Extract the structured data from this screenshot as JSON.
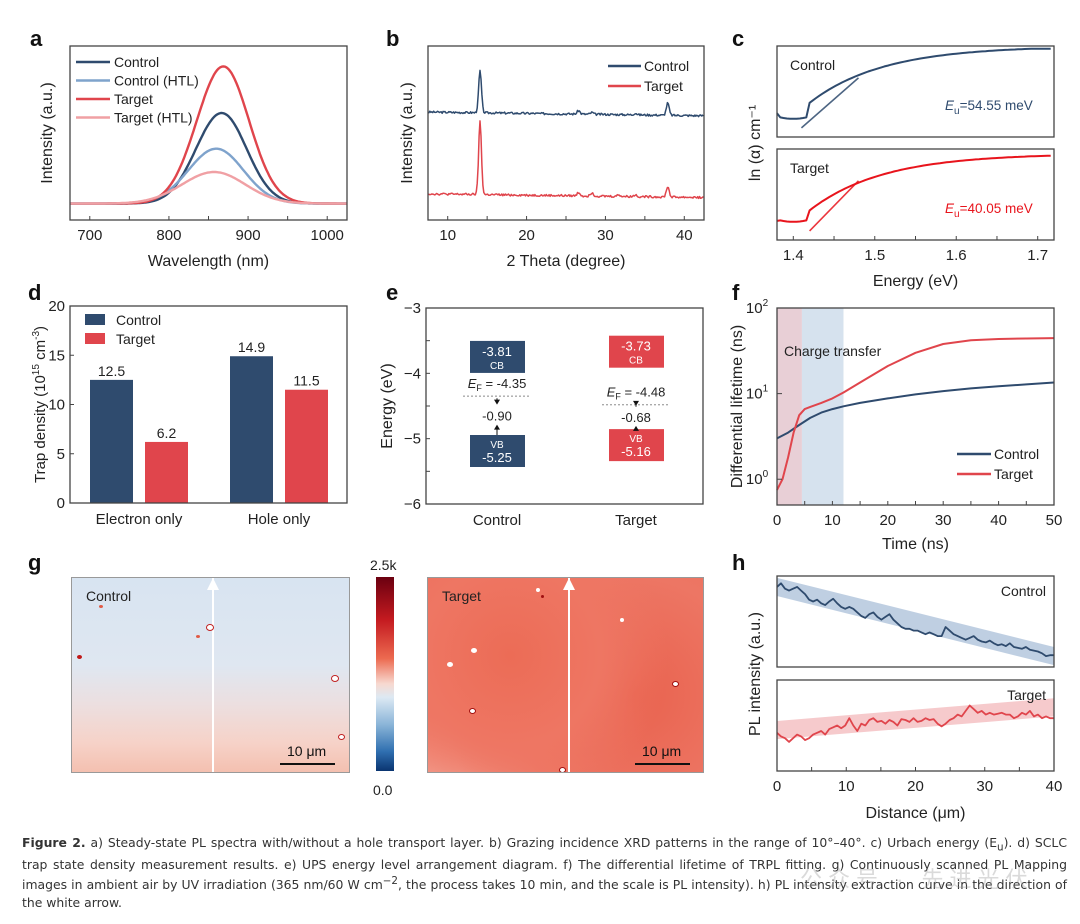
{
  "panels": {
    "a": "a",
    "b": "b",
    "c": "c",
    "d": "d",
    "e": "e",
    "f": "f",
    "g": "g",
    "h": "h"
  },
  "colors": {
    "control": "#2f4b6e",
    "control_htl": "#7fa3cc",
    "target": "#e0454c",
    "target_htl": "#f0a0a4",
    "target_bright": "#e8141c",
    "axis": "#333333"
  },
  "chart_data": [
    {
      "id": "a",
      "type": "line",
      "title": "",
      "xlabel": "Wavelength (nm)",
      "ylabel": "Intensity (a.u.)",
      "xlim": [
        675,
        1025
      ],
      "ylim": [
        -0.12,
        1.15
      ],
      "xticks": [
        700,
        800,
        900,
        1000
      ],
      "legend_position": "top-left",
      "series": [
        {
          "name": "Control",
          "color_key": "control",
          "peak": 865,
          "height": 0.66,
          "width": 32
        },
        {
          "name": "Control (HTL)",
          "color_key": "control_htl",
          "peak": 858,
          "height": 0.4,
          "width": 35
        },
        {
          "name": "Target",
          "color_key": "target",
          "peak": 867,
          "height": 1.0,
          "width": 33
        },
        {
          "name": "Target (HTL)",
          "color_key": "target_htl",
          "peak": 855,
          "height": 0.23,
          "width": 40
        }
      ]
    },
    {
      "id": "b",
      "type": "line",
      "xlabel": "2 Theta (degree)",
      "ylabel": "Intensity (a.u.)",
      "xlim": [
        7.5,
        42.5
      ],
      "xticks": [
        10,
        20,
        30,
        40
      ],
      "legend_position": "top-right",
      "series": [
        {
          "name": "Control",
          "color_key": "control",
          "baseline": 0.62,
          "peaks": [
            [
              14.1,
              0.24
            ],
            [
              26.6,
              0.02
            ],
            [
              28.3,
              0.01
            ],
            [
              33.8,
              0.01
            ],
            [
              37.9,
              0.07
            ]
          ]
        },
        {
          "name": "Target",
          "color_key": "target",
          "baseline": 0.15,
          "peaks": [
            [
              14.1,
              0.42
            ],
            [
              26.6,
              0.02
            ],
            [
              28.3,
              0.02
            ],
            [
              31.7,
              0.01
            ],
            [
              33.8,
              0.01
            ],
            [
              37.9,
              0.06
            ]
          ]
        }
      ]
    },
    {
      "id": "c",
      "type": "line",
      "xlabel": "Energy (eV)",
      "ylabel": "ln (α) cm⁻¹",
      "xlim": [
        1.38,
        1.72
      ],
      "xticks": [
        "1.4",
        "1.5",
        "1.6",
        "1.7"
      ],
      "subplots": [
        {
          "name": "Control",
          "color_key": "control",
          "annotation": "=54.55 meV",
          "Eu": 54.55
        },
        {
          "name": "Target",
          "color_key": "target_bright",
          "annotation": "=40.05 meV",
          "Eu": 40.05
        }
      ],
      "eu_symbol": "E",
      "eu_sub": "u"
    },
    {
      "id": "d",
      "type": "bar",
      "xlabel": "",
      "ylabel": "Trap density (10",
      "ylabel_sup": "15",
      "ylabel_rest": " cm",
      "ylabel_sup2": "-3",
      "ylabel_end": ")",
      "ylim": [
        0,
        20
      ],
      "yticks": [
        0,
        5,
        10,
        15,
        20
      ],
      "categories": [
        "Electron only",
        "Hole only"
      ],
      "legend_position": "top-left",
      "series": [
        {
          "name": "Control",
          "color_key": "control",
          "values": [
            12.5,
            14.9
          ],
          "labels": [
            "12.5",
            "14.9"
          ]
        },
        {
          "name": "Target",
          "color_key": "target",
          "values": [
            6.2,
            11.5
          ],
          "labels": [
            "6.2",
            "11.5"
          ]
        }
      ]
    },
    {
      "id": "e",
      "type": "diagram",
      "ylabel": "Energy (eV)",
      "ylim": [
        -6,
        -3
      ],
      "yticks": [
        "−3",
        "−4",
        "−5",
        "−6"
      ],
      "categories": [
        "Control",
        "Target"
      ],
      "bands": [
        {
          "name": "Control",
          "color_key": "control",
          "CB": -3.81,
          "CB_label": "-3.81",
          "VB": -5.25,
          "VB_label": "-5.25",
          "EF": -4.35,
          "EF_label": " = -4.35",
          "gap_label": "-0.90"
        },
        {
          "name": "Target",
          "color_key": "target",
          "CB": -3.73,
          "CB_label": "-3.73",
          "VB": -5.16,
          "VB_label": "-5.16",
          "EF": -4.48,
          "EF_label": " = -4.48",
          "gap_label": "-0.68"
        }
      ],
      "cb_text": "CB",
      "vb_text": "VB",
      "ef_symbol": "E",
      "ef_sub": "F"
    },
    {
      "id": "f",
      "type": "line",
      "xlabel": "Time (ns)",
      "ylabel": "Differential lifetime (ns)",
      "yscale": "log",
      "xlim": [
        0,
        50
      ],
      "ylim": [
        0.5,
        100
      ],
      "xticks": [
        0,
        10,
        20,
        30,
        40,
        50
      ],
      "yticks": [
        {
          "base": "10",
          "exp": "0"
        },
        {
          "base": "10",
          "exp": "1"
        },
        {
          "base": "10",
          "exp": "2"
        }
      ],
      "annotation": "Charge transfer",
      "shaded_regions": [
        {
          "from": 0,
          "to": 4.5,
          "color": "#e8cfd6"
        },
        {
          "from": 4.5,
          "to": 12,
          "color": "#d6e2ee"
        }
      ],
      "legend_position": "bottom-right",
      "series": [
        {
          "name": "Control",
          "color_key": "control",
          "x": [
            0,
            2,
            4,
            6,
            8,
            10,
            12,
            15,
            20,
            25,
            30,
            35,
            40,
            45,
            50
          ],
          "y": [
            3.0,
            3.5,
            4.3,
            5.2,
            6.0,
            6.6,
            7.1,
            7.8,
            8.8,
            9.8,
            10.7,
            11.5,
            12.2,
            12.8,
            13.5
          ]
        },
        {
          "name": "Target",
          "color_key": "target",
          "x": [
            0,
            1,
            2,
            3,
            4,
            5,
            6,
            8,
            10,
            12,
            15,
            20,
            25,
            30,
            35,
            40,
            45,
            50
          ],
          "y": [
            0.75,
            1.0,
            1.8,
            3.5,
            5.6,
            6.6,
            7.0,
            7.8,
            8.8,
            10.3,
            13.5,
            21,
            30,
            38,
            42,
            43.5,
            44,
            44.5
          ]
        }
      ]
    },
    {
      "id": "g",
      "type": "heatmap",
      "colorbar_max": "2.5k",
      "colorbar_min": "0.0",
      "maps": [
        {
          "name": "Control",
          "scale_label": "10 μm"
        },
        {
          "name": "Target",
          "scale_label": "10 μm"
        }
      ]
    },
    {
      "id": "h",
      "type": "line",
      "xlabel": "Distance (μm)",
      "ylabel": "PL intensity (a.u.)",
      "xlim": [
        0,
        40
      ],
      "xticks": [
        0,
        10,
        20,
        30,
        40
      ],
      "subplots": [
        {
          "name": "Control",
          "color_key": "control",
          "band_color": "#a9bfd8",
          "trend": [
            0.88,
            0.12
          ],
          "values": [
            0.88,
            0.92,
            0.86,
            0.84,
            0.86,
            0.88,
            0.84,
            0.8,
            0.74,
            0.72,
            0.74,
            0.7,
            0.68,
            0.72,
            0.75,
            0.7,
            0.66,
            0.64,
            0.66,
            0.64,
            0.6,
            0.56,
            0.54,
            0.58,
            0.6,
            0.55,
            0.52,
            0.55,
            0.58,
            0.52,
            0.48,
            0.44,
            0.42,
            0.42,
            0.4,
            0.4,
            0.38,
            0.36,
            0.38,
            0.36,
            0.34,
            0.34,
            0.44,
            0.4,
            0.36,
            0.34,
            0.32,
            0.3,
            0.32,
            0.34,
            0.3,
            0.28,
            0.27,
            0.29,
            0.26,
            0.24,
            0.25,
            0.23,
            0.26,
            0.22,
            0.21,
            0.2,
            0.22,
            0.19,
            0.18,
            0.17,
            0.15,
            0.12,
            0.13,
            0.13
          ]
        },
        {
          "name": "Target",
          "color_key": "target",
          "band_color": "#f3b8bb",
          "trend": [
            0.45,
            0.7
          ],
          "values": [
            0.42,
            0.38,
            0.36,
            0.32,
            0.36,
            0.4,
            0.38,
            0.34,
            0.36,
            0.4,
            0.42,
            0.44,
            0.4,
            0.46,
            0.48,
            0.5,
            0.47,
            0.5,
            0.58,
            0.5,
            0.44,
            0.52,
            0.5,
            0.56,
            0.58,
            0.54,
            0.55,
            0.52,
            0.56,
            0.54,
            0.5,
            0.57,
            0.56,
            0.54,
            0.58,
            0.54,
            0.55,
            0.58,
            0.56,
            0.57,
            0.52,
            0.49,
            0.52,
            0.56,
            0.58,
            0.62,
            0.6,
            0.66,
            0.72,
            0.68,
            0.64,
            0.66,
            0.62,
            0.64,
            0.62,
            0.63,
            0.64,
            0.62,
            0.62,
            0.58,
            0.6,
            0.64,
            0.62,
            0.66,
            0.6,
            0.62,
            0.58,
            0.6,
            0.58,
            0.58
          ]
        }
      ]
    }
  ],
  "caption": {
    "label": "Figure 2.",
    "text": " a) Steady-state PL spectra with/without a hole transport layer. b) Grazing incidence XRD patterns in the range of 10°–40°. c) Urbach energy (E",
    "eu_sub": "u",
    "text2": "). d) SCLC trap state density measurement results. e) UPS energy level arrangement diagram. f) The differential lifetime of TRPL fitting. g) Continuously scanned PL Mapping images in ambient air by UV irradiation (365 nm/60 W cm",
    "sup": "−2",
    "text3": ", the process takes 10 min, and the scale is PL intensity). h) PL intensity extraction curve in the direction of the white arrow."
  },
  "watermark": "公众号 · 先进光伏"
}
